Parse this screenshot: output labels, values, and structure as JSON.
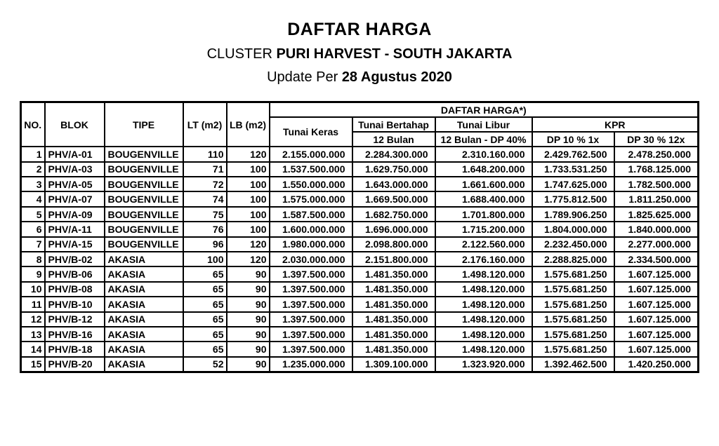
{
  "colors": {
    "background": "#ffffff",
    "text": "#000000",
    "table_border": "#000000"
  },
  "page": {
    "title": "DAFTAR HARGA",
    "subtitle_prefix": "CLUSTER ",
    "subtitle_bold": "PURI HARVEST - SOUTH JAKARTA",
    "update_prefix": "Update Per ",
    "update_bold": "28 Agustus 2020"
  },
  "table": {
    "headers": {
      "no": "NO.",
      "blok": "BLOK",
      "tipe": "TIPE",
      "lt": "LT (m2)",
      "lb": "LB (m2)",
      "daftar_harga_group": "DAFTAR HARGA*)",
      "tunai_keras": "Tunai Keras",
      "tunai_bertahap": "Tunai Bertahap",
      "tunai_bertahap_sub": "12 Bulan",
      "tunai_libur": "Tunai Libur",
      "tunai_libur_sub": "12 Bulan - DP 40%",
      "kpr": "KPR",
      "kpr_dp10": "DP 10 % 1x",
      "kpr_dp30": "DP 30 % 12x"
    },
    "rows": [
      {
        "no": "1",
        "blok": "PHV/A-01",
        "tipe": "BOUGENVILLE",
        "lt": "110",
        "lb": "120",
        "tunai_keras": "2.155.000.000",
        "tunai_bertahap": "2.284.300.000",
        "tunai_libur": "2.310.160.000",
        "kpr_dp10": "2.429.762.500",
        "kpr_dp30": "2.478.250.000"
      },
      {
        "no": "2",
        "blok": "PHV/A-03",
        "tipe": "BOUGENVILLE",
        "lt": "71",
        "lb": "100",
        "tunai_keras": "1.537.500.000",
        "tunai_bertahap": "1.629.750.000",
        "tunai_libur": "1.648.200.000",
        "kpr_dp10": "1.733.531.250",
        "kpr_dp30": "1.768.125.000"
      },
      {
        "no": "3",
        "blok": "PHV/A-05",
        "tipe": "BOUGENVILLE",
        "lt": "72",
        "lb": "100",
        "tunai_keras": "1.550.000.000",
        "tunai_bertahap": "1.643.000.000",
        "tunai_libur": "1.661.600.000",
        "kpr_dp10": "1.747.625.000",
        "kpr_dp30": "1.782.500.000"
      },
      {
        "no": "4",
        "blok": "PHV/A-07",
        "tipe": "BOUGENVILLE",
        "lt": "74",
        "lb": "100",
        "tunai_keras": "1.575.000.000",
        "tunai_bertahap": "1.669.500.000",
        "tunai_libur": "1.688.400.000",
        "kpr_dp10": "1.775.812.500",
        "kpr_dp30": "1.811.250.000"
      },
      {
        "no": "5",
        "blok": "PHV/A-09",
        "tipe": "BOUGENVILLE",
        "lt": "75",
        "lb": "100",
        "tunai_keras": "1.587.500.000",
        "tunai_bertahap": "1.682.750.000",
        "tunai_libur": "1.701.800.000",
        "kpr_dp10": "1.789.906.250",
        "kpr_dp30": "1.825.625.000"
      },
      {
        "no": "6",
        "blok": "PHV/A-11",
        "tipe": "BOUGENVILLE",
        "lt": "76",
        "lb": "100",
        "tunai_keras": "1.600.000.000",
        "tunai_bertahap": "1.696.000.000",
        "tunai_libur": "1.715.200.000",
        "kpr_dp10": "1.804.000.000",
        "kpr_dp30": "1.840.000.000"
      },
      {
        "no": "7",
        "blok": "PHV/A-15",
        "tipe": "BOUGENVILLE",
        "lt": "96",
        "lb": "120",
        "tunai_keras": "1.980.000.000",
        "tunai_bertahap": "2.098.800.000",
        "tunai_libur": "2.122.560.000",
        "kpr_dp10": "2.232.450.000",
        "kpr_dp30": "2.277.000.000"
      },
      {
        "no": "8",
        "blok": "PHV/B-02",
        "tipe": "AKASIA",
        "lt": "100",
        "lb": "120",
        "tunai_keras": "2.030.000.000",
        "tunai_bertahap": "2.151.800.000",
        "tunai_libur": "2.176.160.000",
        "kpr_dp10": "2.288.825.000",
        "kpr_dp30": "2.334.500.000"
      },
      {
        "no": "9",
        "blok": "PHV/B-06",
        "tipe": "AKASIA",
        "lt": "65",
        "lb": "90",
        "tunai_keras": "1.397.500.000",
        "tunai_bertahap": "1.481.350.000",
        "tunai_libur": "1.498.120.000",
        "kpr_dp10": "1.575.681.250",
        "kpr_dp30": "1.607.125.000"
      },
      {
        "no": "10",
        "blok": "PHV/B-08",
        "tipe": "AKASIA",
        "lt": "65",
        "lb": "90",
        "tunai_keras": "1.397.500.000",
        "tunai_bertahap": "1.481.350.000",
        "tunai_libur": "1.498.120.000",
        "kpr_dp10": "1.575.681.250",
        "kpr_dp30": "1.607.125.000"
      },
      {
        "no": "11",
        "blok": "PHV/B-10",
        "tipe": "AKASIA",
        "lt": "65",
        "lb": "90",
        "tunai_keras": "1.397.500.000",
        "tunai_bertahap": "1.481.350.000",
        "tunai_libur": "1.498.120.000",
        "kpr_dp10": "1.575.681.250",
        "kpr_dp30": "1.607.125.000"
      },
      {
        "no": "12",
        "blok": "PHV/B-12",
        "tipe": "AKASIA",
        "lt": "65",
        "lb": "90",
        "tunai_keras": "1.397.500.000",
        "tunai_bertahap": "1.481.350.000",
        "tunai_libur": "1.498.120.000",
        "kpr_dp10": "1.575.681.250",
        "kpr_dp30": "1.607.125.000"
      },
      {
        "no": "13",
        "blok": "PHV/B-16",
        "tipe": "AKASIA",
        "lt": "65",
        "lb": "90",
        "tunai_keras": "1.397.500.000",
        "tunai_bertahap": "1.481.350.000",
        "tunai_libur": "1.498.120.000",
        "kpr_dp10": "1.575.681.250",
        "kpr_dp30": "1.607.125.000"
      },
      {
        "no": "14",
        "blok": "PHV/B-18",
        "tipe": "AKASIA",
        "lt": "65",
        "lb": "90",
        "tunai_keras": "1.397.500.000",
        "tunai_bertahap": "1.481.350.000",
        "tunai_libur": "1.498.120.000",
        "kpr_dp10": "1.575.681.250",
        "kpr_dp30": "1.607.125.000"
      },
      {
        "no": "15",
        "blok": "PHV/B-20",
        "tipe": "AKASIA",
        "lt": "52",
        "lb": "90",
        "tunai_keras": "1.235.000.000",
        "tunai_bertahap": "1.309.100.000",
        "tunai_libur": "1.323.920.000",
        "kpr_dp10": "1.392.462.500",
        "kpr_dp30": "1.420.250.000"
      }
    ]
  }
}
